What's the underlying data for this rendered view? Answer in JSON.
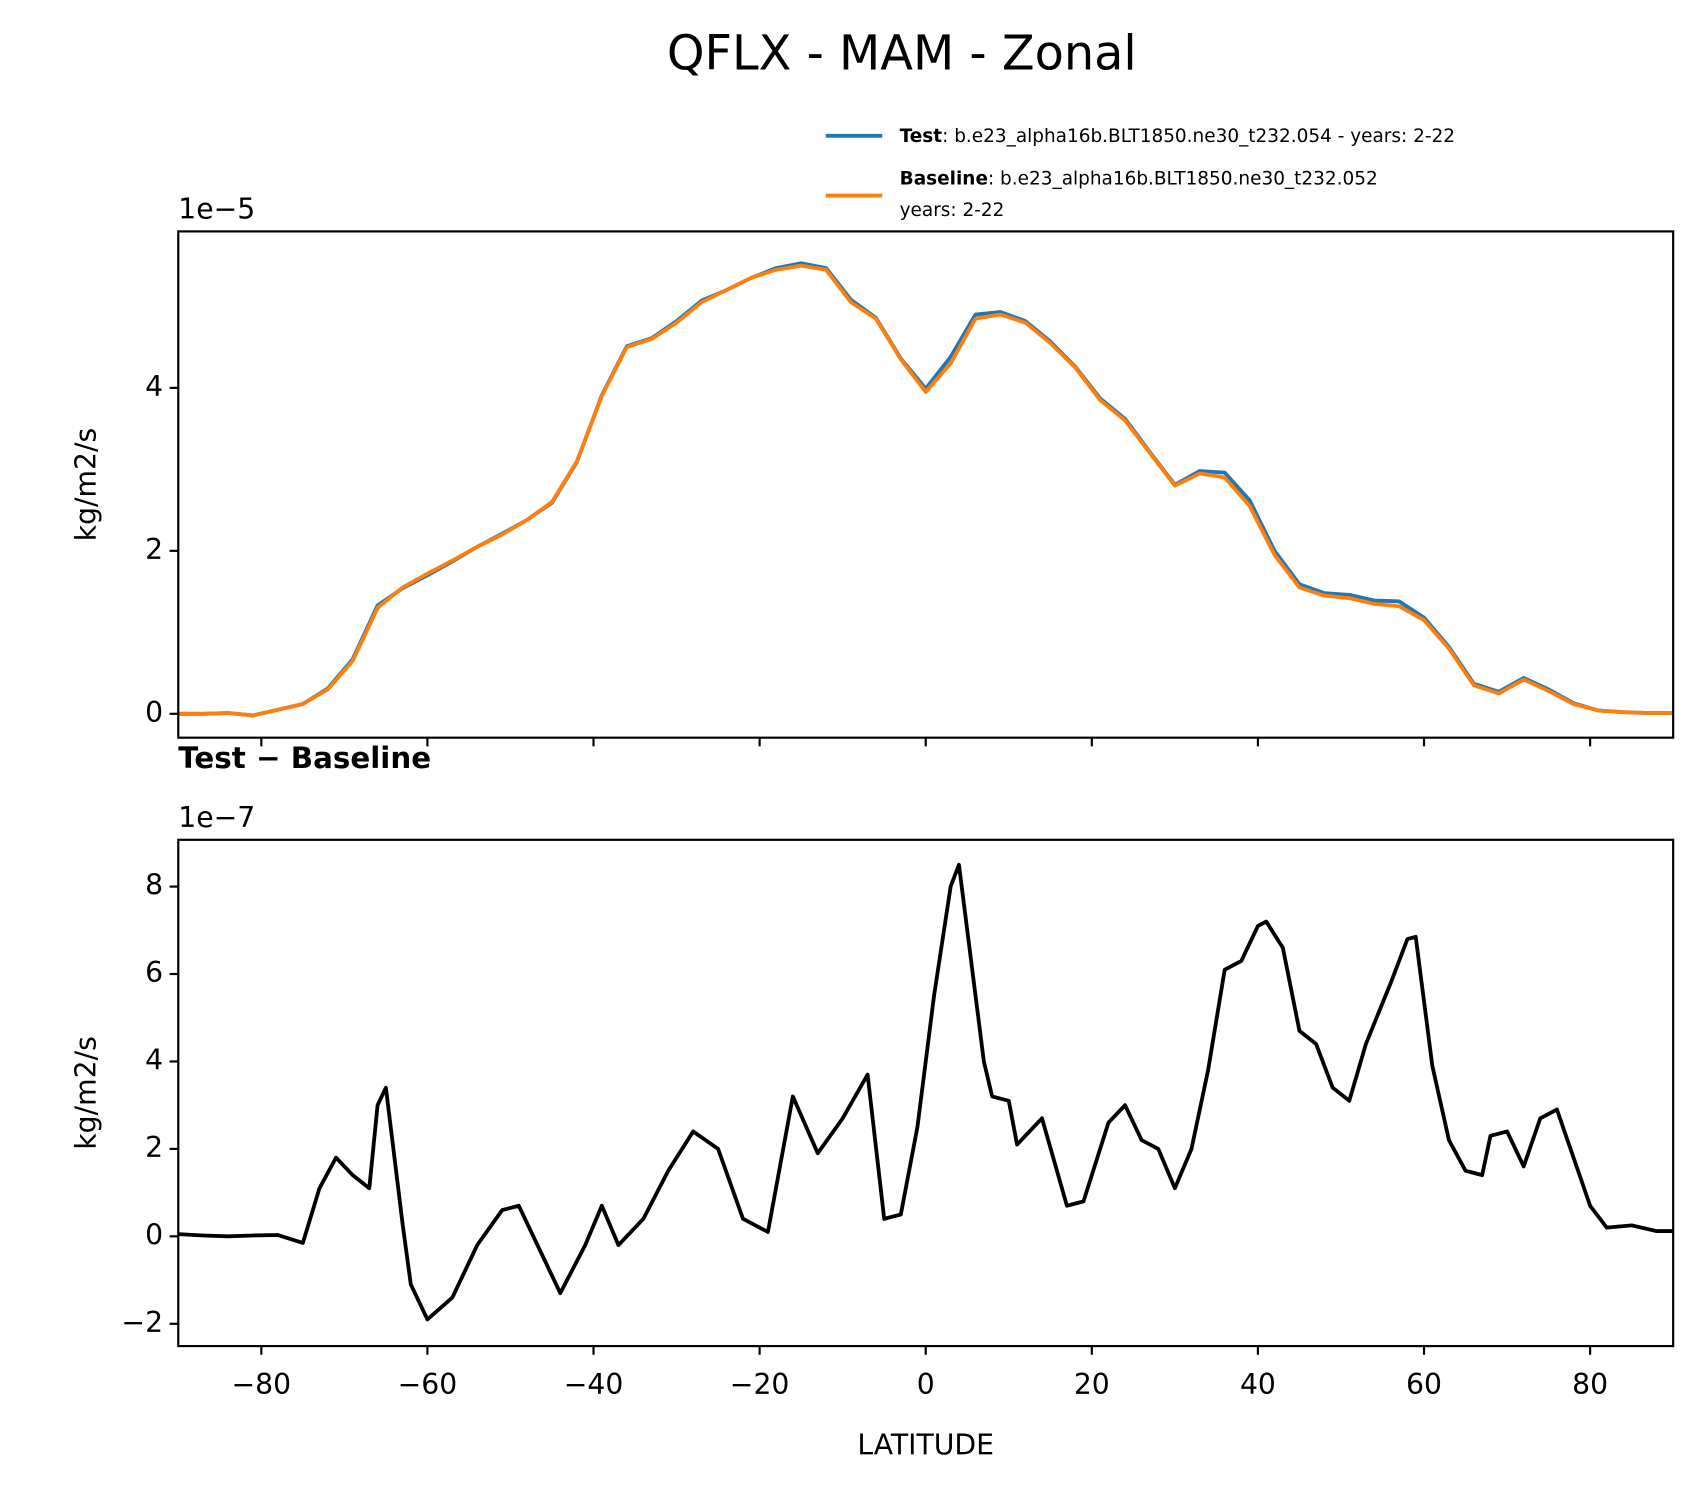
{
  "title": "QFLX - MAM - Zonal",
  "chart_data": [
    {
      "type": "line",
      "offset_text": "1e−5",
      "ylabel": "kg/m2/s",
      "x": [
        -90,
        -87,
        -84,
        -81,
        -78,
        -75,
        -72,
        -69,
        -66,
        -63,
        -60,
        -57,
        -54,
        -51,
        -48,
        -45,
        -42,
        -39,
        -36,
        -33,
        -30,
        -27,
        -24,
        -21,
        -18,
        -15,
        -12,
        -9,
        -6,
        -3,
        0,
        3,
        6,
        9,
        12,
        15,
        18,
        21,
        24,
        27,
        30,
        33,
        36,
        39,
        42,
        45,
        48,
        51,
        54,
        57,
        60,
        63,
        66,
        69,
        72,
        75,
        78,
        81,
        84,
        87,
        90
      ],
      "series": [
        {
          "name": "Test",
          "legend_text": [
            ": b.e23_alpha16b.BLT1850.ne30_t232.054 - years: 2-22"
          ],
          "color": "#1f77b4",
          "values": [
            0.0,
            0.0,
            0.01,
            -0.02,
            0.05,
            0.12,
            0.31,
            0.67,
            1.33,
            1.54,
            1.7,
            1.87,
            2.05,
            2.21,
            2.38,
            2.59,
            3.09,
            3.91,
            4.51,
            4.61,
            4.82,
            5.07,
            5.2,
            5.35,
            5.47,
            5.53,
            5.47,
            5.08,
            4.86,
            4.36,
            3.99,
            4.38,
            4.9,
            4.93,
            4.82,
            4.57,
            4.26,
            3.87,
            3.62,
            3.21,
            2.81,
            2.98,
            2.96,
            2.62,
            2.0,
            1.59,
            1.48,
            1.46,
            1.39,
            1.38,
            1.18,
            0.82,
            0.37,
            0.27,
            0.44,
            0.3,
            0.13,
            0.04,
            0.02,
            0.01,
            0.01
          ]
        },
        {
          "name": "Baseline",
          "legend_text": [
            ": b.e23_alpha16b.BLT1850.ne30_t232.052",
            "years: 2-22"
          ],
          "color": "#ff7f0e",
          "values": [
            0.0,
            0.0,
            0.01,
            -0.02,
            0.05,
            0.12,
            0.3,
            0.65,
            1.3,
            1.55,
            1.72,
            1.88,
            2.05,
            2.2,
            2.38,
            2.6,
            3.1,
            3.9,
            4.5,
            4.6,
            4.8,
            5.05,
            5.2,
            5.35,
            5.45,
            5.5,
            5.45,
            5.05,
            4.85,
            4.35,
            3.95,
            4.3,
            4.85,
            4.9,
            4.8,
            4.55,
            4.25,
            3.85,
            3.6,
            3.2,
            2.8,
            2.95,
            2.9,
            2.55,
            1.95,
            1.55,
            1.45,
            1.42,
            1.35,
            1.32,
            1.15,
            0.8,
            0.35,
            0.25,
            0.42,
            0.28,
            0.12,
            0.04,
            0.02,
            0.01,
            0.01
          ]
        }
      ],
      "xlim": [
        -90,
        90
      ],
      "xticks": [
        -80,
        -60,
        -40,
        -20,
        0,
        20,
        40,
        60,
        80
      ],
      "xticklabels_visible": false,
      "ylim": [
        -0.293,
        5.92
      ],
      "yticks": [
        0,
        2,
        4
      ]
    },
    {
      "type": "line",
      "title": "Test − Baseline",
      "offset_text": "1e−7",
      "ylabel": "kg/m2/s",
      "xlabel": "LATITUDE",
      "x": [
        -90,
        -87,
        -84,
        -81,
        -78,
        -75,
        -73,
        -71,
        -69,
        -67,
        -66,
        -65,
        -63,
        -62,
        -60,
        -57,
        -54,
        -51,
        -49,
        -46,
        -44,
        -41,
        -39,
        -37,
        -34,
        -31,
        -28,
        -25,
        -22,
        -19,
        -16,
        -13,
        -10,
        -7,
        -5,
        -3,
        -1,
        1,
        3,
        4,
        6,
        7,
        8,
        10,
        11,
        14,
        17,
        19,
        22,
        24,
        26,
        28,
        30,
        32,
        34,
        36,
        38,
        40,
        41,
        43,
        45,
        47,
        49,
        51,
        53,
        56,
        58,
        59,
        61,
        63,
        65,
        67,
        68,
        70,
        72,
        74,
        76,
        78,
        80,
        82,
        85,
        88,
        90
      ],
      "series": [
        {
          "color": "#000000",
          "values": [
            0.05,
            0.02,
            0.0,
            0.02,
            0.03,
            -0.15,
            1.1,
            1.8,
            1.4,
            1.1,
            3.0,
            3.4,
            0.3,
            -1.1,
            -1.9,
            -1.4,
            -0.2,
            0.6,
            0.7,
            -0.5,
            -1.3,
            -0.2,
            0.7,
            -0.2,
            0.4,
            1.5,
            2.4,
            2.0,
            0.4,
            0.1,
            3.2,
            1.9,
            2.7,
            3.7,
            0.4,
            0.5,
            2.5,
            5.5,
            8.0,
            8.5,
            5.5,
            4.0,
            3.2,
            3.1,
            2.1,
            2.7,
            0.7,
            0.8,
            2.6,
            3.0,
            2.2,
            2.0,
            1.1,
            2.0,
            3.8,
            6.1,
            6.3,
            7.1,
            7.2,
            6.6,
            4.7,
            4.4,
            3.4,
            3.1,
            4.4,
            5.8,
            6.8,
            6.85,
            3.9,
            2.2,
            1.5,
            1.4,
            2.3,
            2.4,
            1.6,
            2.7,
            2.9,
            1.8,
            0.7,
            0.2,
            0.25,
            0.12,
            0.12
          ]
        }
      ],
      "xlim": [
        -90,
        90
      ],
      "xticks": [
        {
          "value": -80,
          "label": "−80"
        },
        {
          "value": -60,
          "label": "−60"
        },
        {
          "value": -40,
          "label": "−40"
        },
        {
          "value": -20,
          "label": "−20"
        },
        0,
        20,
        40,
        60,
        80
      ],
      "xticklabels_visible": true,
      "ylim": [
        -2.51,
        9.07
      ],
      "yticks": [
        {
          "value": -2,
          "label": "−2"
        },
        0,
        2,
        4,
        6,
        8
      ]
    }
  ]
}
